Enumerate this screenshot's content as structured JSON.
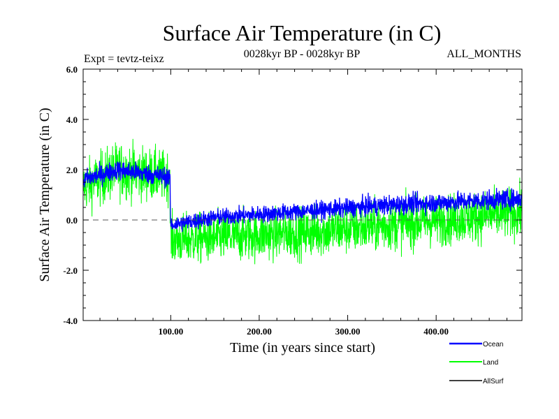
{
  "chart_data": {
    "type": "line",
    "title": "Surface Air Temperature (in C)",
    "subtitle": "0028kyr BP - 0028kyr BP",
    "expt_label": "Expt = tevtz-teixz",
    "months_label": "ALL_MONTHS",
    "xlabel": "Time (in years since start)",
    "ylabel": "Surface Air Temperature (in C)",
    "xlim": [
      1,
      497
    ],
    "ylim": [
      -4.0,
      6.0
    ],
    "x_tick_labels": [
      {
        "value": 100,
        "label": "100.00"
      },
      {
        "value": 200,
        "label": "200.00"
      },
      {
        "value": 300,
        "label": "300.00"
      },
      {
        "value": 400,
        "label": "400.00"
      }
    ],
    "y_tick_labels": [
      {
        "value": -4.0,
        "label": "-4.0"
      },
      {
        "value": -2.0,
        "label": "-2.0"
      },
      {
        "value": 0.0,
        "label": "0.0"
      },
      {
        "value": 2.0,
        "label": "2.0"
      },
      {
        "value": 4.0,
        "label": "4.0"
      },
      {
        "value": 6.0,
        "label": "6.0"
      }
    ],
    "zero_line": true,
    "legend_position": "bottom-right",
    "series": [
      {
        "name": "Land",
        "color": "#00ff00",
        "approx_trend": [
          {
            "x": 1,
            "mean": 1.3,
            "spread": 0.9
          },
          {
            "x": 40,
            "mean": 2.0,
            "spread": 1.0
          },
          {
            "x": 99,
            "mean": 1.7,
            "spread": 0.9
          },
          {
            "x": 100,
            "mean": -0.8,
            "spread": 0.9
          },
          {
            "x": 150,
            "mean": -0.7,
            "spread": 0.9
          },
          {
            "x": 250,
            "mean": -0.5,
            "spread": 0.9
          },
          {
            "x": 350,
            "mean": -0.2,
            "spread": 0.9
          },
          {
            "x": 497,
            "mean": 0.3,
            "spread": 0.9
          }
        ]
      },
      {
        "name": "Ocean",
        "color": "#0000ff",
        "approx_trend": [
          {
            "x": 1,
            "mean": 1.6,
            "spread": 0.35
          },
          {
            "x": 40,
            "mean": 2.0,
            "spread": 0.35
          },
          {
            "x": 99,
            "mean": 1.7,
            "spread": 0.35
          },
          {
            "x": 100,
            "mean": -0.2,
            "spread": 0.3
          },
          {
            "x": 150,
            "mean": 0.1,
            "spread": 0.3
          },
          {
            "x": 250,
            "mean": 0.35,
            "spread": 0.3
          },
          {
            "x": 350,
            "mean": 0.6,
            "spread": 0.35
          },
          {
            "x": 497,
            "mean": 0.85,
            "spread": 0.35
          }
        ]
      },
      {
        "name": "AllSurf",
        "color": "#000000",
        "approx_trend": [
          {
            "x": 1,
            "mean": 1.5,
            "spread": 0.3
          },
          {
            "x": 99,
            "mean": 1.8,
            "spread": 0.3
          },
          {
            "x": 100,
            "mean": -0.3,
            "spread": 0.3
          },
          {
            "x": 497,
            "mean": 0.7,
            "spread": 0.3
          }
        ]
      }
    ],
    "legend_order": [
      "Ocean",
      "Land",
      "AllSurf"
    ]
  }
}
